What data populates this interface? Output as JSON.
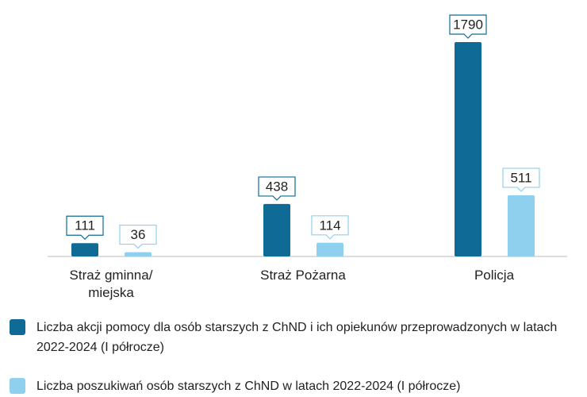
{
  "chart_data": {
    "type": "bar",
    "categories": [
      "Straż gminna/ miejska",
      "Straż Pożarna",
      "Policja"
    ],
    "series": [
      {
        "name": "Liczba akcji pomocy dla osób starszych z ChND i ich opiekunów przeprowadzonych w latach 2022-2024 (I półrocze)",
        "color": "#0f6a96",
        "values": [
          111,
          438,
          1790
        ]
      },
      {
        "name": "Liczba poszukiwań osób starszych z ChND w latach 2022-2024 (I półrocze)",
        "color": "#8fd0ee",
        "values": [
          36,
          114,
          511
        ]
      }
    ]
  }
}
